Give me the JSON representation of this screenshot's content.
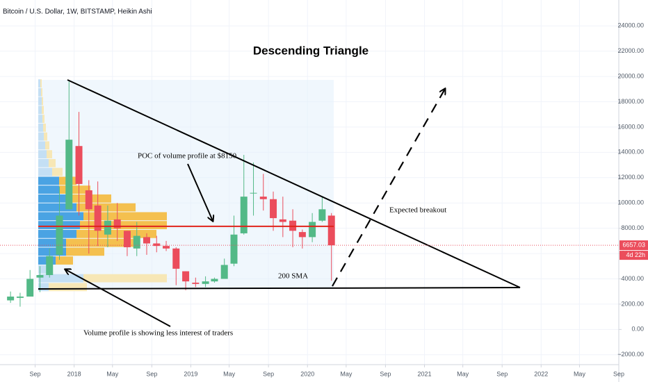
{
  "chart_data": {
    "type": "candlestick",
    "header": "Bitcoin / U.S. Dollar, 1W, BITSTAMP, Heikin Ashi",
    "title": "Descending Triangle",
    "annotations": {
      "poc": "POC of volume profile at $8150",
      "breakout": "Expected breakout",
      "sma": "200 SMA",
      "volume": "Volume profile is showing less interest of traders"
    },
    "poc_level": 8150,
    "countdown": "4d 22h",
    "up_color": "#53b987",
    "down_color": "#eb4d5c",
    "grid": true,
    "x": [
      "2017-06",
      "2017-07",
      "2017-08",
      "2017-09",
      "2017-10",
      "2017-11",
      "2017-12",
      "2018-01",
      "2018-02",
      "2018-03",
      "2018-04",
      "2018-05",
      "2018-06",
      "2018-07",
      "2018-08",
      "2018-09",
      "2018-10",
      "2018-11",
      "2018-12",
      "2019-01",
      "2019-02",
      "2019-03",
      "2019-04",
      "2019-05",
      "2019-06",
      "2019-07",
      "2019-08",
      "2019-09",
      "2019-10",
      "2019-11",
      "2019-12",
      "2020-01",
      "2020-02",
      "2020-03"
    ],
    "series": {
      "open": [
        2300,
        2500,
        2600,
        4100,
        4300,
        5900,
        9500,
        14500,
        11000,
        9800,
        7500,
        8700,
        7800,
        6400,
        7300,
        6800,
        6600,
        6400,
        4600,
        3700,
        3600,
        3800,
        4000,
        5200,
        7600,
        10800,
        10500,
        10300,
        8700,
        8600,
        7700,
        7300,
        8600,
        9000
      ],
      "high": [
        3000,
        2900,
        4700,
        5000,
        6400,
        11300,
        19600,
        17200,
        11800,
        11700,
        9800,
        10000,
        7800,
        8500,
        7600,
        7400,
        7000,
        6500,
        4600,
        4100,
        4200,
        4100,
        5600,
        9000,
        13800,
        13200,
        12300,
        10900,
        10500,
        9500,
        7900,
        9200,
        10500,
        9200
      ],
      "low": [
        2100,
        1800,
        2600,
        2950,
        4100,
        5500,
        9500,
        9000,
        6000,
        6600,
        6500,
        7000,
        5800,
        5800,
        5900,
        6100,
        6200,
        3500,
        3100,
        3350,
        3350,
        3700,
        4000,
        5000,
        7500,
        9000,
        9400,
        7800,
        7300,
        6500,
        6400,
        6900,
        8500,
        3850
      ],
      "close": [
        2600,
        2600,
        4000,
        4300,
        5800,
        9000,
        15000,
        11500,
        9500,
        7800,
        8600,
        8000,
        6500,
        7400,
        6800,
        6600,
        6400,
        4800,
        3800,
        3600,
        3800,
        4000,
        5100,
        7500,
        10500,
        10800,
        10300,
        8800,
        8500,
        7800,
        7300,
        8500,
        9500,
        6657.03
      ]
    },
    "volume_profile": {
      "levels": [
        3000,
        3700,
        4400,
        5100,
        5800,
        6500,
        7200,
        7900,
        8600,
        9300,
        10000,
        10700,
        11400,
        12100,
        12800,
        13500,
        14200,
        14900,
        15600,
        16300,
        17000,
        17700,
        18400,
        19100
      ],
      "up": [
        15,
        65,
        20,
        25,
        40,
        40,
        55,
        60,
        65,
        55,
        45,
        30,
        30,
        20,
        15,
        12,
        10,
        8,
        7,
        6,
        5,
        5,
        4,
        3
      ],
      "down": [
        55,
        120,
        0,
        25,
        55,
        100,
        115,
        125,
        120,
        85,
        60,
        45,
        25,
        15,
        10,
        8,
        6,
        5,
        4,
        3,
        3,
        2,
        2,
        2
      ],
      "value_area": [
        5100,
        11400
      ]
    },
    "xlim": [
      "2017-05",
      "2022-09"
    ],
    "xticks": [
      {
        "value": "2017-09",
        "label": "Sep"
      },
      {
        "value": "2018-01",
        "label": "2018"
      },
      {
        "value": "2018-05",
        "label": "May"
      },
      {
        "value": "2018-09",
        "label": "Sep"
      },
      {
        "value": "2019-01",
        "label": "2019"
      },
      {
        "value": "2019-05",
        "label": "May"
      },
      {
        "value": "2019-09",
        "label": "Sep"
      },
      {
        "value": "2020-01",
        "label": "2020"
      },
      {
        "value": "2020-05",
        "label": "May"
      },
      {
        "value": "2020-09",
        "label": "Sep"
      },
      {
        "value": "2021-01",
        "label": "2021"
      },
      {
        "value": "2021-05",
        "label": "May"
      },
      {
        "value": "2021-09",
        "label": "Sep"
      },
      {
        "value": "2022-01",
        "label": "2022"
      },
      {
        "value": "2022-05",
        "label": "May"
      },
      {
        "value": "2022-09",
        "label": "Sep"
      }
    ],
    "ylim": [
      -3000,
      25000
    ],
    "yticks": [
      {
        "value": -2000,
        "label": "−2000.00"
      },
      {
        "value": 0,
        "label": "0.00"
      },
      {
        "value": 2000,
        "label": "2000.00"
      },
      {
        "value": 4000,
        "label": "4000.00"
      },
      {
        "value": 6000,
        "label": "6000.00"
      },
      {
        "value": 8000,
        "label": "8000.00"
      },
      {
        "value": 10000,
        "label": "10000.00"
      },
      {
        "value": 12000,
        "label": "12000.00"
      },
      {
        "value": 14000,
        "label": "14000.00"
      },
      {
        "value": 16000,
        "label": "16000.00"
      },
      {
        "value": 18000,
        "label": "18000.00"
      },
      {
        "value": 20000,
        "label": "20000.00"
      },
      {
        "value": 22000,
        "label": "22000.00"
      },
      {
        "value": 24000,
        "label": "24000.00"
      }
    ]
  }
}
